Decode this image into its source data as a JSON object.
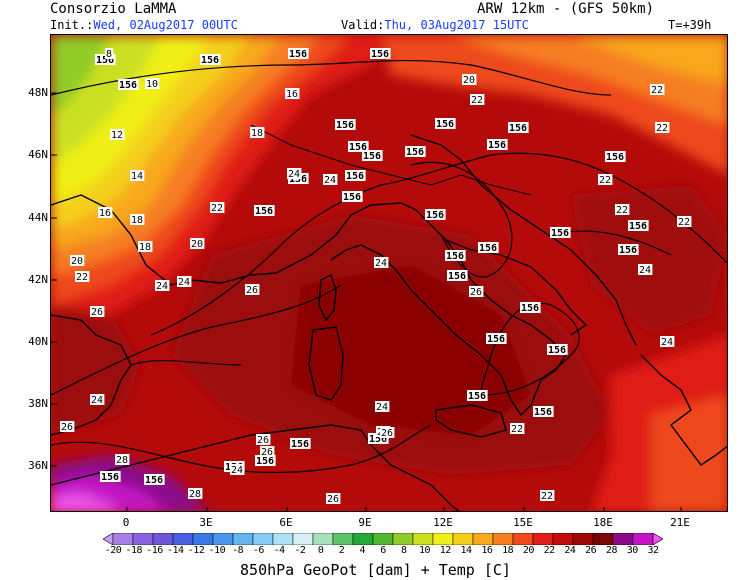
{
  "header": {
    "org": "Consorzio LaMMA",
    "model": "ARW 12km - (GFS 50km)",
    "init_label": "Init.:",
    "init_value": "Wed, 02Aug2017 00UTC",
    "valid_label": "Valid:",
    "valid_value": "Thu, 03Aug2017 15UTC",
    "lead": "T=+39h"
  },
  "axes": {
    "lat_labels": [
      "48N",
      "46N",
      "44N",
      "42N",
      "40N",
      "38N",
      "36N"
    ],
    "lat_values": [
      48,
      46,
      44,
      42,
      40,
      38,
      36
    ],
    "lon_labels": [
      "0",
      "3E",
      "6E",
      "9E",
      "12E",
      "15E",
      "18E",
      "21E"
    ],
    "lon_values": [
      0,
      3,
      6,
      9,
      12,
      15,
      18,
      21
    ]
  },
  "colorbar": {
    "labels": [
      "-20",
      "-18",
      "-16",
      "-14",
      "-12",
      "-10",
      "-8",
      "-6",
      "-4",
      "-2",
      "0",
      "2",
      "4",
      "6",
      "8",
      "10",
      "12",
      "14",
      "16",
      "18",
      "20",
      "22",
      "24",
      "26",
      "28",
      "30",
      "32"
    ],
    "colors": [
      "#c8a0f0",
      "#a87ee8",
      "#8a64e0",
      "#6a58d8",
      "#4a60e0",
      "#3a78e8",
      "#4a96ee",
      "#64b4f2",
      "#86ccf4",
      "#aee0f6",
      "#d6f0f4",
      "#a8e0b8",
      "#5cc46c",
      "#26a838",
      "#52b830",
      "#92cc28",
      "#cce020",
      "#f0f018",
      "#f4d01a",
      "#f8a81e",
      "#f67e20",
      "#ee4a1e",
      "#e01c14",
      "#c40c0c",
      "#a00808",
      "#7a0606",
      "#8a0a8a",
      "#c414c4",
      "#ee54ee"
    ]
  },
  "map_labels": {
    "geopot": [
      "156",
      "156",
      "156",
      "156",
      "156",
      "156",
      "156",
      "156",
      "156",
      "156",
      "156",
      "156",
      "156",
      "156",
      "156",
      "156",
      "156",
      "156",
      "156",
      "156",
      "156",
      "156",
      "156",
      "156",
      "156",
      "156",
      "156",
      "156",
      "156",
      "156",
      "156",
      "156",
      "156",
      "156",
      "156"
    ],
    "temp": [
      "8",
      "10",
      "12",
      "14",
      "16",
      "18",
      "20",
      "22",
      "24",
      "26",
      "28"
    ]
  },
  "footer": {
    "title": "850hPa GeoPot [dam] + Temp [C]"
  }
}
